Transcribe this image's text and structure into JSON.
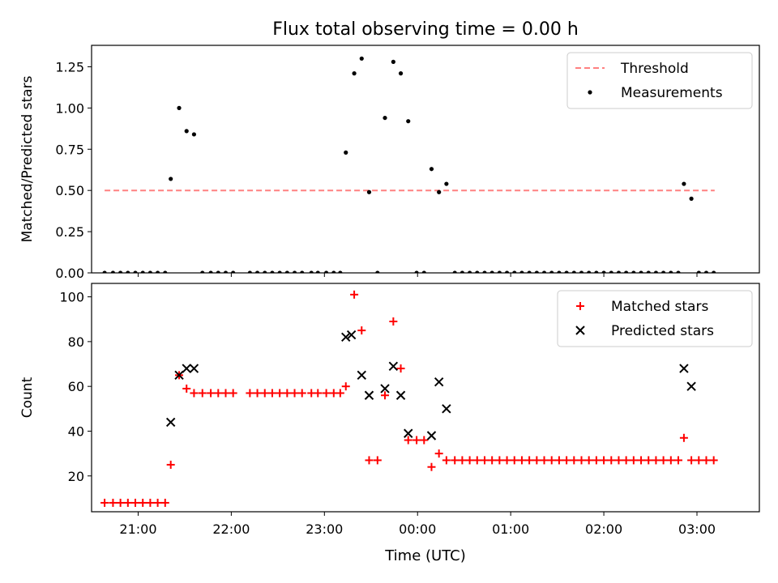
{
  "figure_title": "Flux total observing time = 0.00 h",
  "shared_xlabel": "Time (UTC)",
  "x_tick_labels": [
    "21:00",
    "22:00",
    "23:00",
    "00:00",
    "01:00",
    "02:00",
    "03:00"
  ],
  "chart_data": [
    {
      "type": "scatter",
      "panel": "top",
      "title": "Flux total observing time = 0.00 h",
      "xlabel": "",
      "ylabel": "Matched/Predicted stars",
      "x_unit": "hours since 21:00 UTC",
      "xlim": [
        -0.5,
        6.67
      ],
      "ylim": [
        0,
        1.38
      ],
      "y_ticks": [
        "0.00",
        "0.25",
        "0.50",
        "0.75",
        "1.00",
        "1.25"
      ],
      "legend": {
        "position": "top-right",
        "entries": [
          "Threshold",
          "Measurements"
        ]
      },
      "threshold": {
        "name": "Threshold",
        "value": 0.5,
        "x_range": [
          -0.36,
          6.19
        ],
        "color": "#ff8080",
        "style": "dashed"
      },
      "series": [
        {
          "name": "Measurements",
          "color": "#000000",
          "marker": "dot",
          "points": [
            [
              -0.36,
              0
            ],
            [
              -0.27,
              0
            ],
            [
              -0.19,
              0
            ],
            [
              -0.11,
              0
            ],
            [
              -0.03,
              0
            ],
            [
              0.05,
              0
            ],
            [
              0.13,
              0
            ],
            [
              0.21,
              0
            ],
            [
              0.29,
              0
            ],
            [
              0.35,
              0.57
            ],
            [
              0.44,
              1.0
            ],
            [
              0.52,
              0.86
            ],
            [
              0.6,
              0.84
            ],
            [
              0.69,
              0
            ],
            [
              0.78,
              0
            ],
            [
              0.86,
              0
            ],
            [
              0.94,
              0
            ],
            [
              1.02,
              0
            ],
            [
              1.2,
              0
            ],
            [
              1.28,
              0
            ],
            [
              1.36,
              0
            ],
            [
              1.44,
              0
            ],
            [
              1.52,
              0
            ],
            [
              1.6,
              0
            ],
            [
              1.68,
              0
            ],
            [
              1.76,
              0
            ],
            [
              1.86,
              0
            ],
            [
              1.93,
              0
            ],
            [
              2.02,
              0
            ],
            [
              2.1,
              0
            ],
            [
              2.17,
              0
            ],
            [
              2.23,
              0.73
            ],
            [
              2.32,
              1.21
            ],
            [
              2.4,
              1.3
            ],
            [
              2.48,
              0.49
            ],
            [
              2.57,
              0
            ],
            [
              2.65,
              0.94
            ],
            [
              2.74,
              1.28
            ],
            [
              2.82,
              1.21
            ],
            [
              2.9,
              0.92
            ],
            [
              2.99,
              0
            ],
            [
              3.07,
              0
            ],
            [
              3.15,
              0.63
            ],
            [
              3.23,
              0.49
            ],
            [
              3.31,
              0.54
            ],
            [
              3.4,
              0
            ],
            [
              3.48,
              0
            ],
            [
              3.56,
              0
            ],
            [
              3.64,
              0
            ],
            [
              3.72,
              0
            ],
            [
              3.8,
              0
            ],
            [
              3.88,
              0
            ],
            [
              3.96,
              0
            ],
            [
              4.04,
              0
            ],
            [
              4.12,
              0
            ],
            [
              4.2,
              0
            ],
            [
              4.28,
              0
            ],
            [
              4.36,
              0
            ],
            [
              4.44,
              0
            ],
            [
              4.52,
              0
            ],
            [
              4.6,
              0
            ],
            [
              4.68,
              0
            ],
            [
              4.76,
              0
            ],
            [
              4.84,
              0
            ],
            [
              4.92,
              0
            ],
            [
              5.0,
              0
            ],
            [
              5.08,
              0
            ],
            [
              5.16,
              0
            ],
            [
              5.24,
              0
            ],
            [
              5.32,
              0
            ],
            [
              5.4,
              0
            ],
            [
              5.48,
              0
            ],
            [
              5.56,
              0
            ],
            [
              5.64,
              0
            ],
            [
              5.72,
              0
            ],
            [
              5.8,
              0
            ],
            [
              5.86,
              0.54
            ],
            [
              5.94,
              0.45
            ],
            [
              6.02,
              0
            ],
            [
              6.1,
              0
            ],
            [
              6.18,
              0
            ]
          ]
        }
      ]
    },
    {
      "type": "scatter",
      "panel": "bottom",
      "title": "",
      "xlabel": "Time (UTC)",
      "ylabel": "Count",
      "x_unit": "hours since 21:00 UTC",
      "xlim": [
        -0.5,
        6.67
      ],
      "ylim": [
        4,
        106
      ],
      "y_ticks": [
        "20",
        "40",
        "60",
        "80",
        "100"
      ],
      "legend": {
        "position": "top-right",
        "entries": [
          "Matched stars",
          "Predicted stars"
        ]
      },
      "series": [
        {
          "name": "Matched stars",
          "color": "#ff0000",
          "marker": "plus",
          "points": [
            [
              -0.36,
              8
            ],
            [
              -0.27,
              8
            ],
            [
              -0.19,
              8
            ],
            [
              -0.11,
              8
            ],
            [
              -0.03,
              8
            ],
            [
              0.05,
              8
            ],
            [
              0.13,
              8
            ],
            [
              0.21,
              8
            ],
            [
              0.29,
              8
            ],
            [
              0.35,
              25
            ],
            [
              0.44,
              65
            ],
            [
              0.52,
              59
            ],
            [
              0.6,
              57
            ],
            [
              0.69,
              57
            ],
            [
              0.78,
              57
            ],
            [
              0.86,
              57
            ],
            [
              0.94,
              57
            ],
            [
              1.02,
              57
            ],
            [
              1.2,
              57
            ],
            [
              1.28,
              57
            ],
            [
              1.36,
              57
            ],
            [
              1.44,
              57
            ],
            [
              1.52,
              57
            ],
            [
              1.6,
              57
            ],
            [
              1.68,
              57
            ],
            [
              1.76,
              57
            ],
            [
              1.86,
              57
            ],
            [
              1.93,
              57
            ],
            [
              2.02,
              57
            ],
            [
              2.1,
              57
            ],
            [
              2.17,
              57
            ],
            [
              2.23,
              60
            ],
            [
              2.32,
              101
            ],
            [
              2.4,
              85
            ],
            [
              2.48,
              27
            ],
            [
              2.57,
              27
            ],
            [
              2.65,
              56
            ],
            [
              2.74,
              89
            ],
            [
              2.82,
              68
            ],
            [
              2.9,
              36
            ],
            [
              2.99,
              36
            ],
            [
              3.07,
              36
            ],
            [
              3.15,
              24
            ],
            [
              3.23,
              30
            ],
            [
              3.31,
              27
            ],
            [
              3.4,
              27
            ],
            [
              3.48,
              27
            ],
            [
              3.56,
              27
            ],
            [
              3.64,
              27
            ],
            [
              3.72,
              27
            ],
            [
              3.8,
              27
            ],
            [
              3.88,
              27
            ],
            [
              3.96,
              27
            ],
            [
              4.04,
              27
            ],
            [
              4.12,
              27
            ],
            [
              4.2,
              27
            ],
            [
              4.28,
              27
            ],
            [
              4.36,
              27
            ],
            [
              4.44,
              27
            ],
            [
              4.52,
              27
            ],
            [
              4.6,
              27
            ],
            [
              4.68,
              27
            ],
            [
              4.76,
              27
            ],
            [
              4.84,
              27
            ],
            [
              4.92,
              27
            ],
            [
              5.0,
              27
            ],
            [
              5.08,
              27
            ],
            [
              5.16,
              27
            ],
            [
              5.24,
              27
            ],
            [
              5.32,
              27
            ],
            [
              5.4,
              27
            ],
            [
              5.48,
              27
            ],
            [
              5.56,
              27
            ],
            [
              5.64,
              27
            ],
            [
              5.72,
              27
            ],
            [
              5.8,
              27
            ],
            [
              5.86,
              37
            ],
            [
              5.94,
              27
            ],
            [
              6.02,
              27
            ],
            [
              6.1,
              27
            ],
            [
              6.18,
              27
            ]
          ]
        },
        {
          "name": "Predicted stars",
          "color": "#000000",
          "marker": "x",
          "points": [
            [
              0.35,
              44
            ],
            [
              0.44,
              65
            ],
            [
              0.52,
              68
            ],
            [
              0.6,
              68
            ],
            [
              2.23,
              82
            ],
            [
              2.29,
              83
            ],
            [
              2.4,
              65
            ],
            [
              2.48,
              56
            ],
            [
              2.65,
              59
            ],
            [
              2.74,
              69
            ],
            [
              2.82,
              56
            ],
            [
              2.9,
              39
            ],
            [
              3.15,
              38
            ],
            [
              3.23,
              62
            ],
            [
              3.31,
              50
            ],
            [
              5.86,
              68
            ],
            [
              5.94,
              60
            ]
          ]
        }
      ]
    }
  ]
}
